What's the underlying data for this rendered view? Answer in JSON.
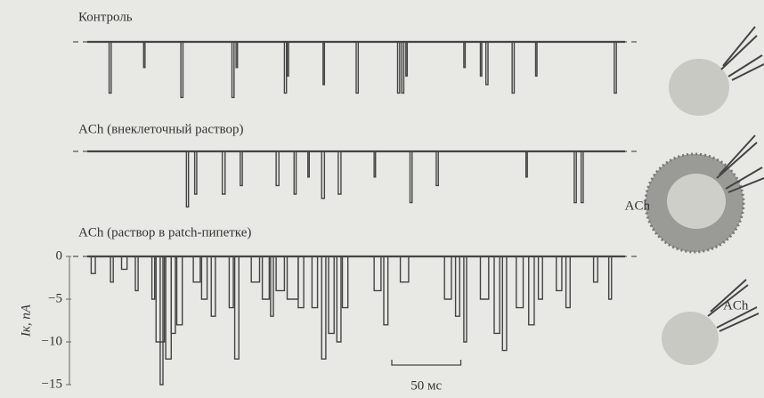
{
  "figure": {
    "panels": [
      {
        "label": "Контроль",
        "events": [
          [
            21,
            1.5,
            -6
          ],
          [
            46,
            1,
            -3
          ],
          [
            73,
            1.5,
            -6.5
          ],
          [
            110,
            1.5,
            -6.5
          ],
          [
            113,
            1,
            -3
          ],
          [
            148,
            1.5,
            -6
          ],
          [
            150,
            1,
            -4
          ],
          [
            176,
            1,
            -5
          ],
          [
            200,
            1.5,
            -6
          ],
          [
            230,
            1.5,
            -6
          ],
          [
            233,
            1.5,
            -6
          ],
          [
            236,
            1,
            -4
          ],
          [
            278,
            1,
            -3
          ],
          [
            290,
            1,
            -4
          ],
          [
            294,
            1.5,
            -5
          ],
          [
            313,
            1.5,
            -6
          ],
          [
            330,
            1,
            -4
          ],
          [
            387,
            1.5,
            -6
          ]
        ]
      },
      {
        "label": "ACh (внеклеточный раствор)",
        "events": [
          [
            77,
            1.5,
            -6.5
          ],
          [
            83,
            1.5,
            -5
          ],
          [
            103,
            2,
            -5
          ],
          [
            116,
            1.5,
            -4
          ],
          [
            142,
            2,
            -4
          ],
          [
            155,
            1.5,
            -5
          ],
          [
            165,
            1,
            -3
          ],
          [
            175,
            2,
            -5.5
          ],
          [
            187,
            2,
            -5
          ],
          [
            213,
            1,
            -3
          ],
          [
            239,
            1.5,
            -6
          ],
          [
            258,
            1.5,
            -4
          ],
          [
            323,
            1,
            -3
          ],
          [
            358,
            1.5,
            -6
          ],
          [
            363,
            1.5,
            -6
          ]
        ]
      },
      {
        "label": "ACh (раствор в patch-пипетке)",
        "events": [
          [
            8,
            3,
            -2
          ],
          [
            22,
            2,
            -3
          ],
          [
            30,
            4,
            -1.5
          ],
          [
            40,
            2,
            -4
          ],
          [
            52,
            2,
            -5
          ],
          [
            55,
            6,
            -10
          ],
          [
            58,
            2,
            -15
          ],
          [
            62,
            4,
            -12
          ],
          [
            66,
            3,
            -9
          ],
          [
            70,
            4,
            -8
          ],
          [
            82,
            5,
            -3
          ],
          [
            88,
            4,
            -5
          ],
          [
            95,
            3,
            -7
          ],
          [
            108,
            3,
            -6
          ],
          [
            112,
            3,
            -12
          ],
          [
            124,
            6,
            -3
          ],
          [
            132,
            5,
            -5
          ],
          [
            138,
            2,
            -7
          ],
          [
            142,
            6,
            -4
          ],
          [
            150,
            8,
            -5
          ],
          [
            158,
            4,
            -6
          ],
          [
            168,
            4,
            -6
          ],
          [
            175,
            3,
            -12
          ],
          [
            180,
            4,
            -9
          ],
          [
            186,
            3,
            -10
          ],
          [
            190,
            4,
            -6
          ],
          [
            213,
            5,
            -4
          ],
          [
            220,
            3,
            -8
          ],
          [
            232,
            6,
            -3
          ],
          [
            264,
            5,
            -5
          ],
          [
            272,
            3,
            -7
          ],
          [
            278,
            2,
            -10
          ],
          [
            290,
            6,
            -5
          ],
          [
            300,
            4,
            -9
          ],
          [
            306,
            3,
            -11
          ],
          [
            316,
            5,
            -6
          ],
          [
            325,
            4,
            -8
          ],
          [
            332,
            3,
            -5
          ],
          [
            345,
            4,
            -4
          ],
          [
            352,
            3,
            -6
          ],
          [
            372,
            3,
            -3
          ],
          [
            383,
            2,
            -5
          ]
        ]
      }
    ],
    "xlim": [
      0,
      400
    ],
    "y_axis": {
      "label": "Iк, пА",
      "lim": [
        0,
        -15
      ],
      "ticks": [
        0,
        {
          "value": -5,
          "label": "−5"
        },
        {
          "value": -10,
          "label": "−10"
        },
        {
          "value": -15,
          "label": "−15"
        }
      ]
    },
    "scale_bar": {
      "value": 50,
      "label": "50 мс"
    },
    "cell_labels": [
      "ACh",
      "ACh"
    ]
  }
}
